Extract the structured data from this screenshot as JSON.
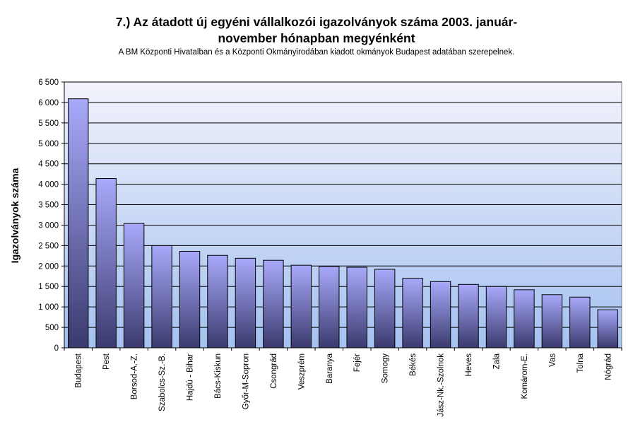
{
  "chart_data": {
    "type": "bar",
    "title_line1": "7.) Az átadott új egyéni vállalkozói igazolványok száma 2003. január-",
    "title_line2": "november hónapban megyénként",
    "subtitle": "A BM Központi Hivatalban és a Központi Okmányirodában kiadott okmányok Budapest adatában szerepelnek.",
    "xlabel": "",
    "ylabel": "Igazolványok száma",
    "ylim": [
      0,
      6500
    ],
    "y_tick_labels": [
      "0",
      "500",
      "1 000",
      "1 500",
      "2 000",
      "2 500",
      "3 000",
      "3 500",
      "4 000",
      "4 500",
      "5 000",
      "5 500",
      "6 000",
      "6 500"
    ],
    "y_tick_values": [
      0,
      500,
      1000,
      1500,
      2000,
      2500,
      3000,
      3500,
      4000,
      4500,
      5000,
      5500,
      6000,
      6500
    ],
    "grid": true,
    "legend": "none",
    "categories": [
      "Budapest",
      "Pest",
      "Borsod-A.-Z.",
      "Szabolcs-Sz.-B.",
      "Hajdú - Bihar",
      "Bács-Kiskun",
      "Győr-M-Sopron",
      "Csongrád",
      "Veszprém",
      "Baranya",
      "Fejér",
      "Somogy",
      "Békés",
      "Jász-Nk.-Szolnok",
      "Heves",
      "Zala",
      "Komárom-E.",
      "Vas",
      "Tolna",
      "Nógrád"
    ],
    "values": [
      6090,
      4140,
      3040,
      2500,
      2360,
      2260,
      2190,
      2140,
      2020,
      1990,
      1970,
      1920,
      1700,
      1620,
      1550,
      1500,
      1420,
      1300,
      1240,
      930
    ],
    "colors": {
      "plot_bg_top": "#f2f2fb",
      "plot_bg_bottom": "#a4c1f0",
      "bar_top": "#a9a9fb",
      "bar_bottom": "#3a3a6e",
      "bar_edge": "#000000",
      "grid": "#000000"
    }
  }
}
